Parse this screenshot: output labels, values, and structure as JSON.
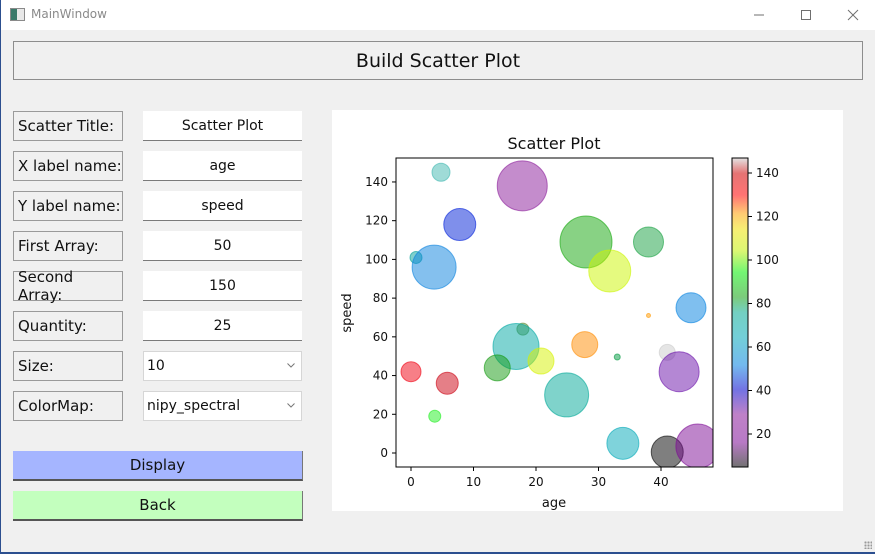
{
  "window": {
    "title": "MainWindow",
    "controls": {
      "minimize": "–",
      "maximize": "☐",
      "close": "✕"
    }
  },
  "header": {
    "label": "Build Scatter Plot"
  },
  "form": {
    "rows": [
      {
        "label": "Scatter Title:",
        "value": "Scatter Plot"
      },
      {
        "label": "X label name:",
        "value": "age"
      },
      {
        "label": "Y label name:",
        "value": "speed"
      },
      {
        "label": "First Array:",
        "value": "50"
      },
      {
        "label": "Second Array:",
        "value": "150"
      },
      {
        "label": "Quantity:",
        "value": "25"
      }
    ],
    "size": {
      "label": "Size:",
      "value": "10"
    },
    "colormap": {
      "label": "ColorMap:",
      "value": "nipy_spectral"
    }
  },
  "buttons": {
    "display": {
      "label": "Display",
      "color": "#a5b5ff"
    },
    "back": {
      "label": "Back",
      "color": "#c3ffbe"
    }
  },
  "chart_data": {
    "type": "scatter",
    "title": "Scatter Plot",
    "xlabel": "age",
    "ylabel": "speed",
    "xlim": [
      -2.5,
      48
    ],
    "ylim": [
      -7.5,
      153
    ],
    "xticks": [
      0,
      10,
      20,
      30,
      40
    ],
    "yticks": [
      0,
      20,
      40,
      60,
      80,
      100,
      120,
      140
    ],
    "grid": false,
    "colormap": "nipy_spectral",
    "alpha": 0.5,
    "colorbar": {
      "ticks": [
        20,
        40,
        60,
        80,
        100,
        120,
        140
      ],
      "range": [
        4,
        148
      ],
      "position": "right"
    },
    "points": [
      {
        "x": 4.8,
        "y": 145,
        "size": 9,
        "color": "#3fb8b0"
      },
      {
        "x": 17.8,
        "y": 138,
        "size": 25,
        "color": "#8a1a9a"
      },
      {
        "x": 7.8,
        "y": 118,
        "size": 16,
        "color": "#0020d8"
      },
      {
        "x": 28,
        "y": 109,
        "size": 26,
        "color": "#12a60a"
      },
      {
        "x": 38,
        "y": 109,
        "size": 15,
        "color": "#16a040"
      },
      {
        "x": 0.8,
        "y": 101,
        "size": 6,
        "color": "#009f9a"
      },
      {
        "x": 3.7,
        "y": 96,
        "size": 22,
        "color": "#0a82dd"
      },
      {
        "x": 31.8,
        "y": 94,
        "size": 21,
        "color": "#ccf500"
      },
      {
        "x": 44.8,
        "y": 75,
        "size": 15,
        "color": "#0080e0"
      },
      {
        "x": 38,
        "y": 71,
        "size": 2,
        "color": "#ff9a00"
      },
      {
        "x": 17.9,
        "y": 64,
        "size": 6,
        "color": "#5a8a30"
      },
      {
        "x": 16.8,
        "y": 55,
        "size": 23,
        "color": "#00a8a4"
      },
      {
        "x": 27.8,
        "y": 56,
        "size": 13,
        "color": "#ff8c00"
      },
      {
        "x": 33,
        "y": 49.6,
        "size": 3,
        "color": "#009a40"
      },
      {
        "x": 41,
        "y": 52,
        "size": 8,
        "color": "#cccccc"
      },
      {
        "x": 20.8,
        "y": 47.5,
        "size": 13,
        "color": "#d6f200"
      },
      {
        "x": 13.8,
        "y": 44,
        "size": 13,
        "color": "#149a10"
      },
      {
        "x": 42.9,
        "y": 42,
        "size": 20,
        "color": "#6a10aa"
      },
      {
        "x": 0,
        "y": 42,
        "size": 10,
        "color": "#f00010"
      },
      {
        "x": 5.8,
        "y": 36,
        "size": 11,
        "color": "#cc0010"
      },
      {
        "x": 24.9,
        "y": 30,
        "size": 22,
        "color": "#00a898"
      },
      {
        "x": 3.8,
        "y": 19,
        "size": 6,
        "color": "#20ef20"
      },
      {
        "x": 33.9,
        "y": 5,
        "size": 16,
        "color": "#00a8b8"
      },
      {
        "x": 41,
        "y": 0.5,
        "size": 16,
        "color": "#000000"
      },
      {
        "x": 45.9,
        "y": 3.6,
        "size": 22,
        "color": "#7e0c96"
      }
    ]
  }
}
